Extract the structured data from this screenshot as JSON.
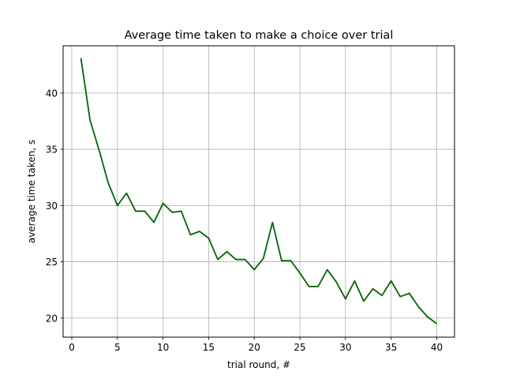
{
  "chart_data": {
    "type": "line",
    "title": "Average time taken to make a choice over trial",
    "xlabel": "trial round, #",
    "ylabel": "average time taken, s",
    "xlim": [
      -0.95,
      41.95
    ],
    "ylim": [
      18.3,
      44.2
    ],
    "xticks": [
      0,
      5,
      10,
      15,
      20,
      25,
      30,
      35,
      40
    ],
    "yticks": [
      20,
      25,
      30,
      35,
      40
    ],
    "grid": true,
    "line_color": "#006400",
    "series": [
      {
        "x": [
          1,
          2,
          3,
          4,
          5,
          6,
          7,
          8,
          9,
          10,
          11,
          12,
          13,
          14,
          15,
          16,
          17,
          18,
          19,
          20,
          21,
          22,
          23,
          24,
          25,
          26,
          27,
          28,
          29,
          30,
          31,
          32,
          33,
          34,
          35,
          36,
          37,
          38,
          39,
          40
        ],
        "values": [
          43.1,
          37.6,
          34.9,
          32.0,
          30.0,
          31.1,
          29.5,
          29.5,
          28.5,
          30.2,
          29.4,
          29.5,
          27.4,
          27.7,
          27.1,
          25.2,
          25.9,
          25.2,
          25.2,
          24.3,
          25.3,
          28.5,
          25.1,
          25.1,
          24.0,
          22.8,
          22.8,
          24.3,
          23.2,
          21.7,
          23.3,
          21.5,
          22.6,
          22.0,
          23.3,
          21.9,
          22.2,
          21.0,
          20.1,
          19.5
        ]
      }
    ]
  }
}
